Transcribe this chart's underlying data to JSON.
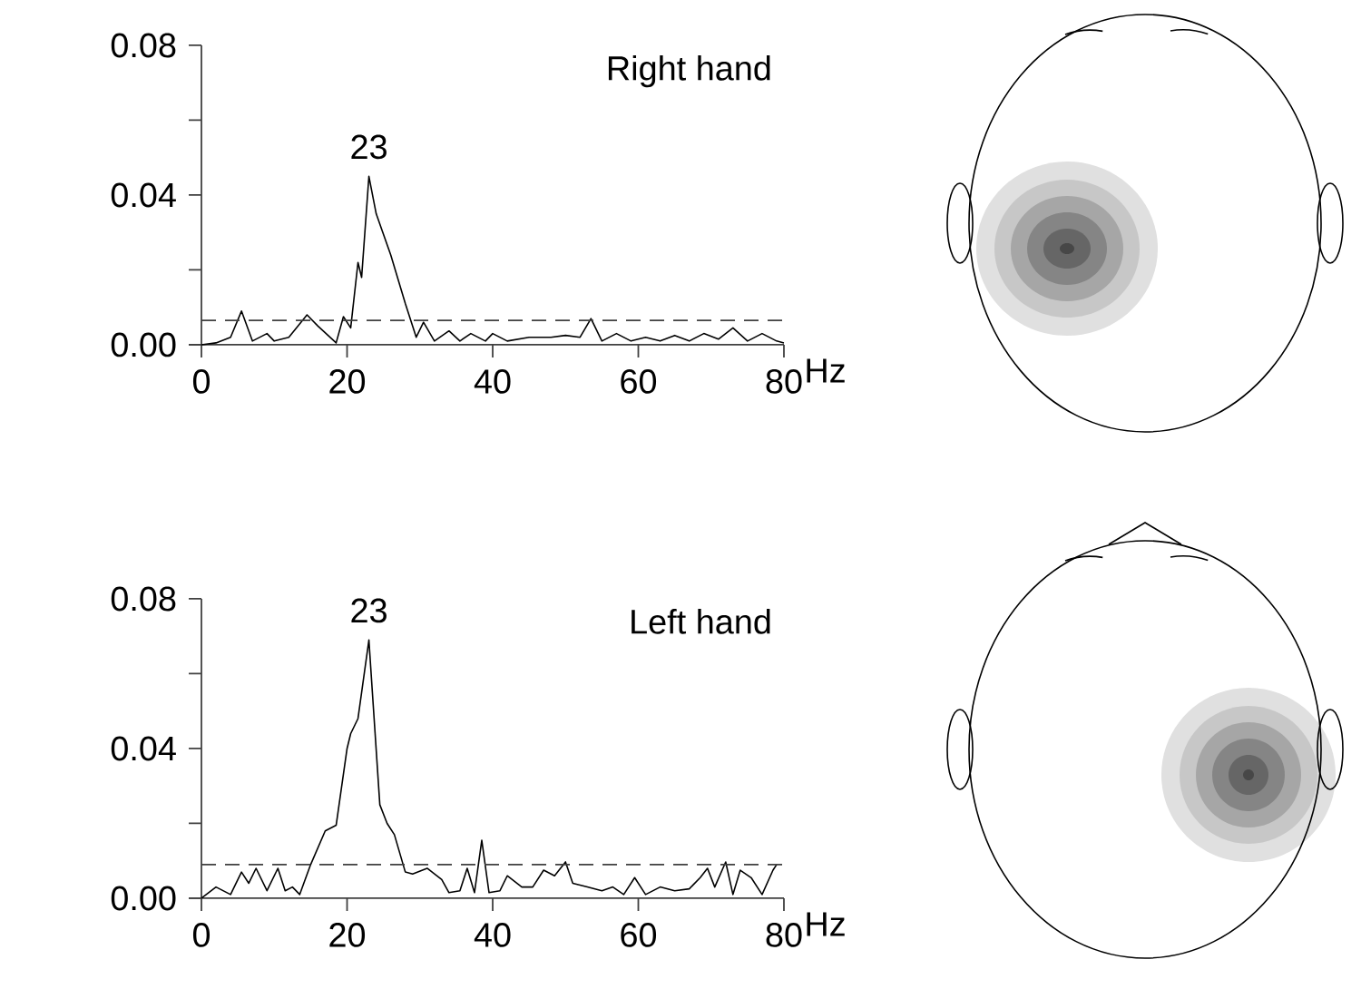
{
  "chart_data": [
    {
      "type": "line",
      "title": "Right hand",
      "xlabel": "Hz",
      "color": "#000000",
      "x": [
        0,
        2,
        4,
        5.5,
        7,
        9,
        10,
        12,
        14.5,
        16,
        18.5,
        19.5,
        20.5,
        21.5,
        22,
        23,
        24,
        26,
        28,
        29.5,
        30.5,
        32,
        34,
        35.5,
        37,
        39,
        40,
        42,
        45,
        48,
        50,
        52,
        53.5,
        55,
        57,
        59,
        61,
        63,
        65,
        67,
        69,
        71,
        73,
        75,
        77,
        79,
        80
      ],
      "values": [
        0,
        0.0005,
        0.002,
        0.009,
        0.001,
        0.003,
        0.001,
        0.002,
        0.008,
        0.005,
        0.0005,
        0.0075,
        0.0045,
        0.022,
        0.018,
        0.045,
        0.035,
        0.024,
        0.011,
        0.002,
        0.006,
        0.001,
        0.0037,
        0.001,
        0.003,
        0.001,
        0.003,
        0.001,
        0.002,
        0.002,
        0.0025,
        0.002,
        0.007,
        0.001,
        0.003,
        0.001,
        0.002,
        0.001,
        0.0025,
        0.001,
        0.003,
        0.0015,
        0.0045,
        0.001,
        0.003,
        0.001,
        0.0005
      ],
      "xlim": [
        0,
        80
      ],
      "ylim": [
        0,
        0.08
      ],
      "xticks": [
        0,
        20,
        40,
        60,
        80
      ],
      "yticks": [
        {
          "value": 0,
          "label": "0.00"
        },
        {
          "value": 0.02,
          "label": null
        },
        {
          "value": 0.04,
          "label": "0.04"
        },
        {
          "value": 0.06,
          "label": null
        },
        {
          "value": 0.08,
          "label": "0.08"
        }
      ],
      "ref_lines": [
        {
          "axis": "y",
          "value": 0.0065,
          "line_style": "dashed"
        }
      ],
      "annotations": [
        {
          "text": "23",
          "x": 23,
          "y": 0.045
        }
      ]
    },
    {
      "type": "line",
      "title": "Left hand",
      "xlabel": "Hz",
      "color": "#000000",
      "x": [
        0,
        2,
        4,
        5.5,
        6.5,
        7.5,
        9,
        10.5,
        11.5,
        12.5,
        13.5,
        15,
        17,
        18.5,
        20,
        20.5,
        21.5,
        23,
        24.5,
        25.5,
        26.5,
        28,
        29,
        31,
        33,
        34,
        35.5,
        36.5,
        37.5,
        38.5,
        39.5,
        41,
        42,
        44,
        45.5,
        47,
        48.5,
        50,
        51,
        53,
        55,
        56.5,
        58,
        59.5,
        61,
        63,
        65,
        67,
        68.5,
        69.5,
        70.5,
        72,
        73,
        74,
        75.5,
        77,
        78.5,
        79
      ],
      "values": [
        0,
        0.003,
        0.001,
        0.007,
        0.004,
        0.008,
        0.002,
        0.008,
        0.002,
        0.003,
        0.001,
        0.009,
        0.018,
        0.0195,
        0.04,
        0.044,
        0.048,
        0.069,
        0.025,
        0.02,
        0.017,
        0.007,
        0.0065,
        0.008,
        0.005,
        0.0015,
        0.002,
        0.008,
        0.0015,
        0.0155,
        0.0015,
        0.002,
        0.006,
        0.003,
        0.003,
        0.0075,
        0.006,
        0.0097,
        0.004,
        0.003,
        0.002,
        0.003,
        0.001,
        0.0055,
        0.001,
        0.003,
        0.002,
        0.0025,
        0.0055,
        0.008,
        0.003,
        0.0097,
        0.001,
        0.0075,
        0.0055,
        0.001,
        0.0075,
        0.009
      ],
      "xlim": [
        0,
        80
      ],
      "ylim": [
        0,
        0.08
      ],
      "xticks": [
        0,
        20,
        40,
        60,
        80
      ],
      "yticks": [
        {
          "value": 0,
          "label": "0.00"
        },
        {
          "value": 0.02,
          "label": null
        },
        {
          "value": 0.04,
          "label": "0.04"
        },
        {
          "value": 0.06,
          "label": null
        },
        {
          "value": 0.08,
          "label": "0.08"
        }
      ],
      "ref_lines": [
        {
          "axis": "y",
          "value": 0.009,
          "line_style": "dashed"
        }
      ],
      "annotations": [
        {
          "text": "23",
          "x": 23,
          "y": 0.069
        }
      ]
    }
  ]
}
